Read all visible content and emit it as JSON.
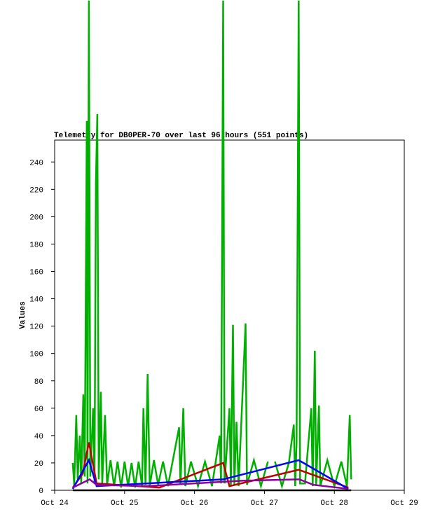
{
  "chart_data": {
    "type": "line",
    "title": "Telemetry for DB0PER-70 over last 96 hours (551 points)",
    "y_label": "Values",
    "xlim": [
      24,
      29
    ],
    "xticks": [
      {
        "value": 24,
        "label": "Oct 24"
      },
      {
        "value": 25,
        "label": "Oct 25"
      },
      {
        "value": 26,
        "label": "Oct 26"
      },
      {
        "value": 27,
        "label": "Oct 27"
      },
      {
        "value": 28,
        "label": "Oct 28"
      },
      {
        "value": 29,
        "label": "Oct 29"
      }
    ],
    "ylim": [
      0,
      256
    ],
    "yticks": [
      0,
      20,
      40,
      60,
      80,
      100,
      120,
      140,
      160,
      180,
      200,
      220,
      240
    ],
    "series": [
      {
        "color": "#00b000",
        "x": [
          24.26,
          24.28,
          24.31,
          24.33,
          24.36,
          24.38,
          24.41,
          24.43,
          24.46,
          24.47,
          24.49,
          24.51,
          24.55,
          24.57,
          24.59,
          24.61,
          24.63,
          24.66,
          24.68,
          24.72,
          24.75,
          24.8,
          24.85,
          24.9,
          24.95,
          25.0,
          25.05,
          25.1,
          25.15,
          25.2,
          25.25,
          25.27,
          25.3,
          25.33,
          25.36,
          25.42,
          25.48,
          25.55,
          25.62,
          25.78,
          25.8,
          25.84,
          25.87,
          25.95,
          26.05,
          26.15,
          26.25,
          26.36,
          26.38,
          26.41,
          26.43,
          26.5,
          26.52,
          26.55,
          26.57,
          26.6,
          26.63,
          26.73,
          26.75,
          26.85,
          26.95,
          27.05,
          27.08,
          27.15,
          27.25,
          27.35,
          27.42,
          27.44,
          27.46,
          27.49,
          27.51,
          27.58,
          27.67,
          27.69,
          27.72,
          27.74,
          27.78,
          27.8,
          27.9,
          28.0,
          28.1,
          28.18,
          28.22,
          28.24
        ],
        "values": [
          20,
          4,
          55,
          8,
          40,
          5,
          70,
          10,
          270,
          5,
          358,
          10,
          60,
          5,
          225,
          275,
          8,
          72,
          5,
          55,
          4,
          22,
          3,
          21,
          2,
          21,
          3,
          20,
          2,
          21,
          3,
          60,
          4,
          85,
          3,
          22,
          4,
          21,
          3,
          46,
          4,
          60,
          3,
          21,
          3,
          21,
          3,
          40,
          5,
          358,
          5,
          60,
          3,
          121,
          4,
          50,
          3,
          122,
          4,
          22,
          3,
          21,
          null,
          21,
          3,
          20,
          48,
          3,
          35,
          358,
          5,
          5,
          60,
          3,
          102,
          4,
          62,
          3,
          22,
          3,
          21,
          3,
          55,
          8
        ]
      },
      {
        "color": "#c00000",
        "x": [
          24.26,
          24.4,
          24.49,
          24.6,
          25.5,
          26.41,
          26.5,
          27.49,
          28.2
        ],
        "values": [
          2,
          12,
          35,
          5,
          2,
          20,
          3,
          15,
          2
        ]
      },
      {
        "color": "#0000ff",
        "x": [
          24.26,
          24.49,
          24.6,
          26.41,
          27.49,
          28.2
        ],
        "values": [
          1,
          22,
          3,
          8,
          22,
          1
        ]
      },
      {
        "color": "#9000a0",
        "x": [
          24.26,
          24.5,
          24.6,
          25.3,
          26.7,
          27.5,
          27.7,
          28.2
        ],
        "values": [
          2,
          8,
          4,
          3,
          7,
          8,
          4,
          1
        ]
      },
      {
        "color": "#000000",
        "x": [
          24.26,
          28.24
        ],
        "values": [
          0,
          0
        ]
      }
    ]
  }
}
